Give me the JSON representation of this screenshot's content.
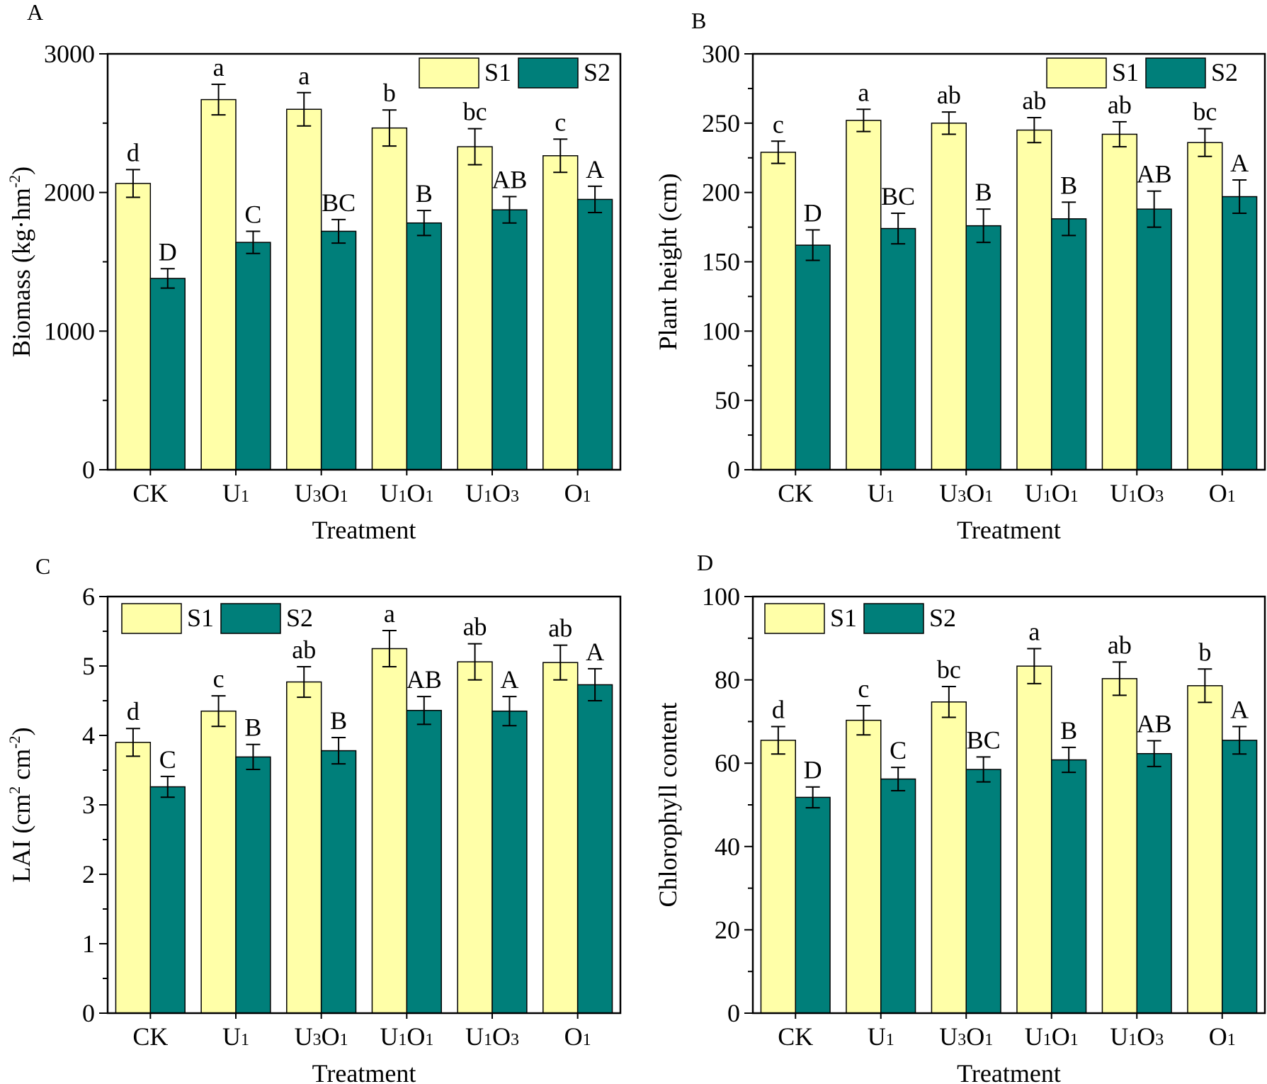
{
  "colors": {
    "S1": "#ffffa8",
    "S2": "#007f7a",
    "axis": "#000000"
  },
  "chart_data": [
    {
      "panel": "A",
      "type": "bar",
      "xlabel": "Treatment",
      "ylabel": "Biomass",
      "ylabel_unit": [
        "(kg·hm",
        "-2",
        ")"
      ],
      "ylim": [
        0,
        3000
      ],
      "yticks": [
        0,
        1000,
        2000,
        3000
      ],
      "legend": "top-right",
      "categories": [
        [
          "CK",
          ""
        ],
        [
          "U",
          "1"
        ],
        [
          "U",
          "3",
          "O",
          "1"
        ],
        [
          "U",
          "1",
          "O",
          "1"
        ],
        [
          "U",
          "1",
          "O",
          "3"
        ],
        [
          "O",
          "1"
        ]
      ],
      "series": [
        {
          "name": "S1",
          "values": [
            2065,
            2670,
            2600,
            2465,
            2330,
            2265
          ],
          "errors": [
            100,
            110,
            120,
            130,
            130,
            120
          ],
          "letters": [
            "d",
            "a",
            "a",
            "b",
            "bc",
            "c"
          ]
        },
        {
          "name": "S2",
          "values": [
            1380,
            1640,
            1720,
            1780,
            1875,
            1950
          ],
          "errors": [
            70,
            80,
            85,
            90,
            95,
            95
          ],
          "letters": [
            "D",
            "C",
            "BC",
            "B",
            "AB",
            "A"
          ]
        }
      ]
    },
    {
      "panel": "B",
      "type": "bar",
      "xlabel": "Treatment",
      "ylabel": "Plant height (cm)",
      "ylim": [
        0,
        300
      ],
      "yticks": [
        0,
        50,
        100,
        150,
        200,
        250,
        300
      ],
      "legend": "top-right",
      "categories": [
        [
          "CK",
          ""
        ],
        [
          "U",
          "1"
        ],
        [
          "U",
          "3",
          "O",
          "1"
        ],
        [
          "U",
          "1",
          "O",
          "1"
        ],
        [
          "U",
          "1",
          "O",
          "3"
        ],
        [
          "O",
          "1"
        ]
      ],
      "series": [
        {
          "name": "S1",
          "values": [
            229,
            252,
            250,
            245,
            242,
            236
          ],
          "errors": [
            8,
            8,
            8,
            9,
            9,
            10
          ],
          "letters": [
            "c",
            "a",
            "ab",
            "ab",
            "ab",
            "bc"
          ]
        },
        {
          "name": "S2",
          "values": [
            162,
            174,
            176,
            181,
            188,
            197
          ],
          "errors": [
            11,
            11,
            12,
            12,
            13,
            12
          ],
          "letters": [
            "D",
            "BC",
            "B",
            "B",
            "AB",
            "A"
          ]
        }
      ]
    },
    {
      "panel": "C",
      "type": "bar",
      "xlabel": "Treatment",
      "ylabel": "LAI (cm",
      "ylabel_parts": [
        "LAI (cm",
        "2",
        " cm",
        "-2",
        ")"
      ],
      "ylim": [
        0,
        6
      ],
      "yticks": [
        0,
        1,
        2,
        3,
        4,
        5,
        6
      ],
      "legend": "top-left",
      "categories": [
        [
          "CK",
          ""
        ],
        [
          "U",
          "1"
        ],
        [
          "U",
          "3",
          "O",
          "1"
        ],
        [
          "U",
          "1",
          "O",
          "1"
        ],
        [
          "U",
          "1",
          "O",
          "3"
        ],
        [
          "O",
          "1"
        ]
      ],
      "series": [
        {
          "name": "S1",
          "values": [
            3.9,
            4.35,
            4.77,
            5.25,
            5.06,
            5.05
          ],
          "errors": [
            0.2,
            0.22,
            0.22,
            0.26,
            0.26,
            0.25
          ],
          "letters": [
            "d",
            "c",
            "ab",
            "a",
            "ab",
            "ab"
          ]
        },
        {
          "name": "S2",
          "values": [
            3.26,
            3.69,
            3.78,
            4.36,
            4.35,
            4.73
          ],
          "errors": [
            0.15,
            0.18,
            0.19,
            0.2,
            0.21,
            0.23
          ],
          "letters": [
            "C",
            "B",
            "B",
            "AB",
            "A",
            "A"
          ]
        }
      ]
    },
    {
      "panel": "D",
      "type": "bar",
      "xlabel": "Treatment",
      "ylabel": "Chlorophyll content",
      "ylim": [
        0,
        100
      ],
      "yticks": [
        0,
        20,
        40,
        60,
        80,
        100
      ],
      "legend": "top-left",
      "categories": [
        [
          "CK",
          ""
        ],
        [
          "U",
          "1"
        ],
        [
          "U",
          "3",
          "O",
          "1"
        ],
        [
          "U",
          "1",
          "O",
          "1"
        ],
        [
          "U",
          "1",
          "O",
          "3"
        ],
        [
          "O",
          "1"
        ]
      ],
      "series": [
        {
          "name": "S1",
          "values": [
            65.5,
            70.3,
            74.7,
            83.3,
            80.3,
            78.6
          ],
          "errors": [
            3.3,
            3.5,
            3.7,
            4.2,
            4.0,
            4.0
          ],
          "letters": [
            "d",
            "c",
            "bc",
            "a",
            "ab",
            "b"
          ]
        },
        {
          "name": "S2",
          "values": [
            51.8,
            56.2,
            58.5,
            60.8,
            62.3,
            65.5
          ],
          "errors": [
            2.5,
            2.8,
            3.0,
            3.0,
            3.1,
            3.3
          ],
          "letters": [
            "D",
            "C",
            "BC",
            "B",
            "AB",
            "A"
          ]
        }
      ]
    }
  ]
}
